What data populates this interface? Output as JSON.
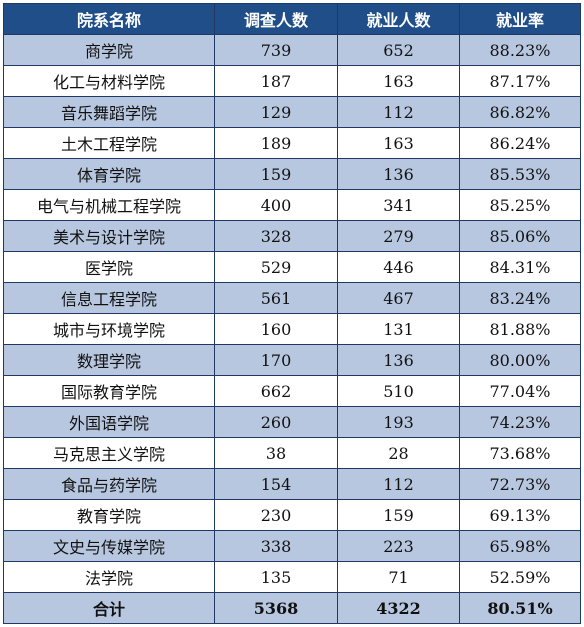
{
  "table": {
    "headers": [
      "院系名称",
      "调查人数",
      "就业人数",
      "就业率"
    ],
    "rows": [
      [
        "商学院",
        "739",
        "652",
        "88.23%"
      ],
      [
        "化工与材料学院",
        "187",
        "163",
        "87.17%"
      ],
      [
        "音乐舞蹈学院",
        "129",
        "112",
        "86.82%"
      ],
      [
        "土木工程学院",
        "189",
        "163",
        "86.24%"
      ],
      [
        "体育学院",
        "159",
        "136",
        "85.53%"
      ],
      [
        "电气与机械工程学院",
        "400",
        "341",
        "85.25%"
      ],
      [
        "美术与设计学院",
        "328",
        "279",
        "85.06%"
      ],
      [
        "医学院",
        "529",
        "446",
        "84.31%"
      ],
      [
        "信息工程学院",
        "561",
        "467",
        "83.24%"
      ],
      [
        "城市与环境学院",
        "160",
        "131",
        "81.88%"
      ],
      [
        "数理学院",
        "170",
        "136",
        "80.00%"
      ],
      [
        "国际教育学院",
        "662",
        "510",
        "77.04%"
      ],
      [
        "外国语学院",
        "260",
        "193",
        "74.23%"
      ],
      [
        "马克思主义学院",
        "38",
        "28",
        "73.68%"
      ],
      [
        "食品与药学院",
        "154",
        "112",
        "72.73%"
      ],
      [
        "教育学院",
        "230",
        "159",
        "69.13%"
      ],
      [
        "文史与传媒学院",
        "338",
        "223",
        "65.98%"
      ],
      [
        "法学院",
        "135",
        "71",
        "52.59%"
      ]
    ],
    "total": [
      "合计",
      "5368",
      "4322",
      "80.51%"
    ]
  },
  "colors": {
    "header_bg": "#1f4e89",
    "row_shaded": "#b8c7e0",
    "row_plain": "#ffffff",
    "border": "#1f3864"
  }
}
